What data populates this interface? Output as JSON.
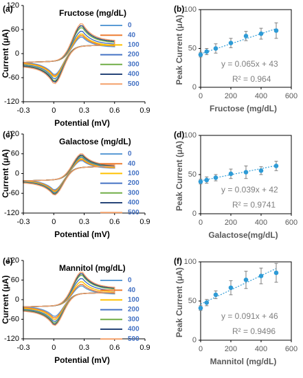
{
  "panel_labels": [
    "(a)",
    "(b)",
    "(c)",
    "(d)",
    "(e)",
    "(f)"
  ],
  "cv_legend_levels": [
    "0",
    "40",
    "100",
    "200",
    "300",
    "400",
    "500"
  ],
  "colors": {
    "levels": [
      "#5b9bd5",
      "#ed7d31",
      "#ffc000",
      "#4472c4",
      "#70ad47",
      "#264478",
      "#f4a06a"
    ],
    "fit_point": "#2e9bd6",
    "axis_label": "#595959",
    "equation": "#7f7f7f"
  },
  "chart_data": [
    {
      "type": "line",
      "panel": "(a)",
      "title": "Fructose (mg/dL)",
      "xlabel": "Potential (mV)",
      "ylabel": "Current (μA)",
      "xlim": [
        -0.3,
        0.9
      ],
      "ylim": [
        -120,
        120
      ],
      "xticks": [
        "-0.3",
        "0",
        "0.3",
        "0.6",
        "0.9"
      ],
      "yticks": [
        "120",
        "60",
        "0",
        "-60",
        "-120"
      ],
      "grid": false,
      "legend_position": "right",
      "series": [
        {
          "name": "0",
          "peak_anodic": 42,
          "peak_cathodic": -53
        },
        {
          "name": "40",
          "peak_anodic": 46,
          "peak_cathodic": -56
        },
        {
          "name": "100",
          "peak_anodic": 50,
          "peak_cathodic": -59
        },
        {
          "name": "200",
          "peak_anodic": 57,
          "peak_cathodic": -64
        },
        {
          "name": "300",
          "peak_anodic": 66,
          "peak_cathodic": -69
        },
        {
          "name": "400",
          "peak_anodic": 71,
          "peak_cathodic": -72
        },
        {
          "name": "500",
          "peak_anodic": 76,
          "peak_cathodic": -76
        }
      ]
    },
    {
      "type": "scatter",
      "panel": "(b)",
      "xlabel": "Fructose (mg/dL)",
      "ylabel": "Peak Current (μA)",
      "xlim": [
        0,
        600
      ],
      "ylim": [
        0,
        100
      ],
      "xticks": [
        "0",
        "200",
        "400",
        "600"
      ],
      "yticks": [
        "100",
        "50",
        "0"
      ],
      "grid": false,
      "x": [
        0,
        40,
        100,
        200,
        300,
        400,
        500
      ],
      "y": [
        42,
        46,
        50,
        57,
        66,
        69,
        73
      ],
      "error": [
        3,
        4,
        6,
        6,
        6,
        7,
        10
      ],
      "equation": "y = 0.065x + 43",
      "r_squared": "R² = 0.964",
      "fit": {
        "slope": 0.065,
        "intercept": 43
      }
    },
    {
      "type": "line",
      "panel": "(c)",
      "title": "Galactose (mg/dL)",
      "xlabel": "Potential (mV)",
      "ylabel": "Current (μA)",
      "xlim": [
        -0.3,
        0.9
      ],
      "ylim": [
        -120,
        120
      ],
      "xticks": [
        "-0.3",
        "0",
        "0.3",
        "0.6",
        "0.9"
      ],
      "yticks": [
        "120",
        "60",
        "0",
        "-60",
        "-120"
      ],
      "grid": false,
      "legend_position": "right",
      "series": [
        {
          "name": "0",
          "peak_anodic": 40,
          "peak_cathodic": -50
        },
        {
          "name": "40",
          "peak_anodic": 43,
          "peak_cathodic": -53
        },
        {
          "name": "100",
          "peak_anodic": 46,
          "peak_cathodic": -56
        },
        {
          "name": "200",
          "peak_anodic": 50,
          "peak_cathodic": -59
        },
        {
          "name": "300",
          "peak_anodic": 54,
          "peak_cathodic": -62
        },
        {
          "name": "400",
          "peak_anodic": 57,
          "peak_cathodic": -64
        },
        {
          "name": "500",
          "peak_anodic": 61,
          "peak_cathodic": -66
        }
      ]
    },
    {
      "type": "scatter",
      "panel": "(d)",
      "xlabel": "Galactose(mg/dL)",
      "ylabel": "Peak Current (μA)",
      "xlim": [
        0,
        600
      ],
      "ylim": [
        0,
        100
      ],
      "xticks": [
        "0",
        "200",
        "400",
        "600"
      ],
      "yticks": [
        "100",
        "50",
        "0"
      ],
      "grid": false,
      "x": [
        0,
        40,
        100,
        200,
        300,
        400,
        500
      ],
      "y": [
        41,
        43,
        46,
        51,
        53,
        55,
        61
      ],
      "error": [
        3,
        4,
        4,
        6,
        8,
        5,
        6
      ],
      "equation": "y = 0.039x + 42",
      "r_squared": "R² = 0.9741",
      "fit": {
        "slope": 0.039,
        "intercept": 42
      }
    },
    {
      "type": "line",
      "panel": "(e)",
      "title": "Mannitol (mg/dL)",
      "xlabel": "Potential (mV)",
      "ylabel": "Current (μA)",
      "xlim": [
        -0.3,
        0.9
      ],
      "ylim": [
        -120,
        120
      ],
      "xticks": [
        "-0.3",
        "0",
        "0.3",
        "0.6",
        "0.9"
      ],
      "yticks": [
        "120",
        "60",
        "0",
        "-60",
        "-120"
      ],
      "grid": false,
      "legend_position": "right",
      "series": [
        {
          "name": "0",
          "peak_anodic": 43,
          "peak_cathodic": -52
        },
        {
          "name": "40",
          "peak_anodic": 48,
          "peak_cathodic": -57
        },
        {
          "name": "100",
          "peak_anodic": 56,
          "peak_cathodic": -62
        },
        {
          "name": "200",
          "peak_anodic": 66,
          "peak_cathodic": -68
        },
        {
          "name": "300",
          "peak_anodic": 76,
          "peak_cathodic": -73
        },
        {
          "name": "400",
          "peak_anodic": 81,
          "peak_cathodic": -77
        },
        {
          "name": "500",
          "peak_anodic": 86,
          "peak_cathodic": -80
        }
      ]
    },
    {
      "type": "scatter",
      "panel": "(f)",
      "xlabel": "Mannitol (mg/dL)",
      "ylabel": "Peak Current (μA)",
      "xlim": [
        0,
        600
      ],
      "ylim": [
        0,
        100
      ],
      "xticks": [
        "0",
        "200",
        "400",
        "600"
      ],
      "yticks": [
        "100",
        "50",
        "0"
      ],
      "grid": false,
      "x": [
        0,
        40,
        100,
        200,
        300,
        400,
        500
      ],
      "y": [
        41,
        48,
        58,
        67,
        77,
        82,
        86
      ],
      "error": [
        3,
        4,
        5,
        9,
        11,
        10,
        12
      ],
      "equation": "y = 0.091x + 46",
      "r_squared": "R² = 0.9496",
      "fit": {
        "slope": 0.091,
        "intercept": 46
      }
    }
  ]
}
